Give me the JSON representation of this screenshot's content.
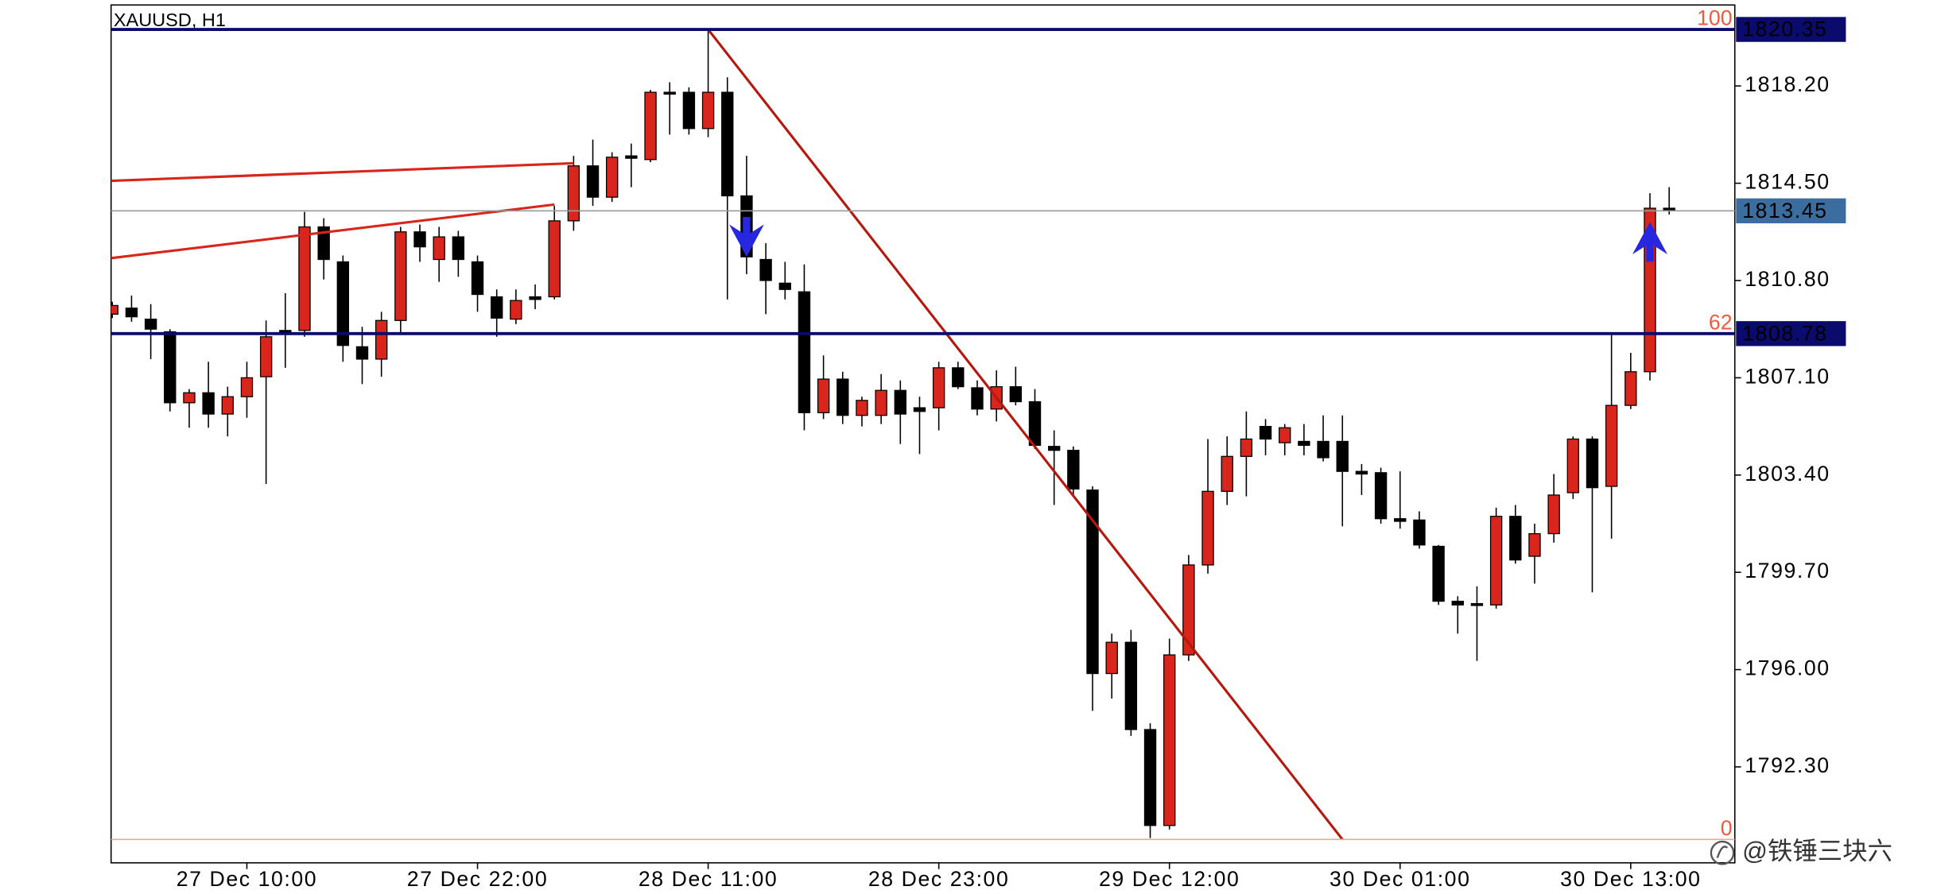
{
  "chart_data": {
    "type": "candlestick",
    "title": "XAUUSD, H1",
    "categories": [
      null,
      null,
      null,
      null,
      null,
      null,
      null,
      "27 Dec 10:00",
      null,
      null,
      null,
      null,
      null,
      null,
      null,
      null,
      null,
      null,
      null,
      "27 Dec 22:00",
      null,
      null,
      null,
      null,
      null,
      null,
      null,
      null,
      null,
      null,
      null,
      "28 Dec 11:00",
      null,
      null,
      null,
      null,
      null,
      null,
      null,
      null,
      null,
      null,
      null,
      "28 Dec 23:00",
      null,
      null,
      null,
      null,
      null,
      null,
      null,
      null,
      null,
      null,
      null,
      "29 Dec 12:00",
      null,
      null,
      null,
      null,
      null,
      null,
      null,
      null,
      null,
      null,
      null,
      "30 Dec 01:00",
      null,
      null,
      null,
      null,
      null,
      null,
      null,
      null,
      null,
      null,
      null,
      "30 Dec 13:00",
      null,
      null
    ],
    "open": [
      1809.52,
      1809.75,
      1809.33,
      1808.85,
      1806.15,
      1806.53,
      1805.72,
      1806.38,
      1807.14,
      1808.9,
      1808.9,
      1812.84,
      1811.51,
      1808.28,
      1807.81,
      1809.28,
      1812.65,
      1811.6,
      1812.46,
      1811.51,
      1810.18,
      1809.33,
      1810.18,
      1810.18,
      1813.07,
      1815.16,
      1813.97,
      1815.54,
      1815.4,
      1817.96,
      1817.96,
      1816.58,
      1817.96,
      1814.02,
      1811.6,
      1810.7,
      1810.37,
      1805.77,
      1807.05,
      1805.67,
      1805.67,
      1806.62,
      1805.96,
      1805.96,
      1807.48,
      1806.72,
      1805.91,
      1806.76,
      1806.19,
      1804.49,
      1804.34,
      1802.83,
      1795.85,
      1797.04,
      1793.72,
      1790.07,
      1796.56,
      1799.98,
      1802.78,
      1804.11,
      1805.25,
      1804.63,
      1804.68,
      1804.68,
      1804.68,
      1803.54,
      1803.49,
      1801.74,
      1801.69,
      1800.69,
      1798.6,
      1798.51,
      1798.46,
      1801.83,
      1800.31,
      1801.17,
      1802.73,
      1804.77,
      1802.97,
      1806.05,
      1807.33,
      1813.55
    ],
    "high": [
      1809.99,
      1810.23,
      1809.9,
      1808.95,
      1806.67,
      1807.71,
      1806.76,
      1807.71,
      1809.28,
      1810.32,
      1813.41,
      1813.17,
      1811.75,
      1809.04,
      1809.61,
      1812.84,
      1812.93,
      1812.84,
      1812.69,
      1811.75,
      1810.46,
      1810.46,
      1810.65,
      1813.64,
      1815.54,
      1816.16,
      1815.68,
      1816.01,
      1818.05,
      1818.34,
      1818.15,
      1820.35,
      1818.53,
      1815.54,
      1812.22,
      1811.51,
      1811.41,
      1807.95,
      1807.33,
      1806.38,
      1807.24,
      1807.0,
      1806.38,
      1807.71,
      1807.71,
      1807.0,
      1807.38,
      1807.52,
      1806.67,
      1805.1,
      1804.49,
      1802.97,
      1797.37,
      1797.51,
      1793.96,
      1797.18,
      1800.36,
      1804.77,
      1804.87,
      1805.82,
      1805.53,
      1805.34,
      1805.34,
      1805.67,
      1805.67,
      1803.82,
      1803.68,
      1803.54,
      1802.02,
      1800.74,
      1798.79,
      1799.17,
      1802.16,
      1802.26,
      1801.55,
      1803.44,
      1804.87,
      1804.87,
      1808.76,
      1808.05,
      1814.12,
      1814.35
    ],
    "low": [
      1809.37,
      1809.23,
      1807.81,
      1805.82,
      1805.2,
      1805.2,
      1804.87,
      1805.58,
      1803.06,
      1807.48,
      1808.66,
      1810.84,
      1807.71,
      1806.86,
      1807.14,
      1808.76,
      1811.51,
      1810.75,
      1810.94,
      1809.61,
      1808.66,
      1809.14,
      1809.71,
      1810.08,
      1812.69,
      1813.64,
      1813.79,
      1814.35,
      1815.3,
      1816.35,
      1816.35,
      1816.25,
      1810.08,
      1811.04,
      1809.52,
      1810.08,
      1805.1,
      1805.53,
      1805.34,
      1805.25,
      1805.34,
      1804.58,
      1804.2,
      1805.1,
      1806.67,
      1805.67,
      1805.44,
      1806.05,
      1804.39,
      1802.26,
      1802.59,
      1794.43,
      1794.9,
      1793.48,
      1789.59,
      1789.92,
      1796.33,
      1799.65,
      1802.26,
      1802.59,
      1804.15,
      1804.15,
      1804.15,
      1803.92,
      1801.45,
      1802.64,
      1801.55,
      1801.36,
      1800.6,
      1798.46,
      1797.37,
      1796.33,
      1798.32,
      1800.03,
      1799.27,
      1800.83,
      1802.49,
      1798.94,
      1800.98,
      1805.91,
      1807.0,
      1813.31
    ],
    "close": [
      1809.85,
      1809.42,
      1808.95,
      1806.15,
      1806.53,
      1805.72,
      1806.38,
      1807.1,
      1808.66,
      1808.8,
      1812.84,
      1811.6,
      1808.33,
      1807.81,
      1809.28,
      1812.65,
      1812.08,
      1812.46,
      1811.6,
      1810.27,
      1809.37,
      1810.04,
      1810.08,
      1813.07,
      1815.16,
      1813.97,
      1815.49,
      1815.45,
      1817.96,
      1817.91,
      1816.58,
      1817.96,
      1814.02,
      1811.7,
      1810.8,
      1810.46,
      1805.77,
      1807.05,
      1805.67,
      1806.24,
      1806.62,
      1805.72,
      1805.82,
      1807.48,
      1806.76,
      1805.91,
      1806.76,
      1806.19,
      1804.53,
      1804.34,
      1802.87,
      1795.85,
      1797.04,
      1793.72,
      1790.07,
      1796.56,
      1799.98,
      1802.78,
      1804.11,
      1804.77,
      1804.77,
      1805.2,
      1804.53,
      1804.06,
      1803.54,
      1803.44,
      1801.74,
      1801.64,
      1800.74,
      1798.6,
      1798.46,
      1798.46,
      1801.83,
      1800.17,
      1801.17,
      1802.64,
      1804.77,
      1802.92,
      1806.05,
      1807.33,
      1813.55,
      1813.45
    ],
    "up_color": "#d8261c",
    "down_color": "#000000",
    "ylim": [
      1788.65,
      1821.28
    ],
    "yticks": [
      {
        "value": 1818.2,
        "label": "1818.20"
      },
      {
        "value": 1814.5,
        "label": "1814.50"
      },
      {
        "value": 1810.8,
        "label": "1810.80"
      },
      {
        "value": 1807.1,
        "label": "1807.10"
      },
      {
        "value": 1803.4,
        "label": "1803.40"
      },
      {
        "value": 1799.7,
        "label": "1799.70"
      },
      {
        "value": 1796,
        "label": "1796.00"
      },
      {
        "value": 1792.3,
        "label": "1792.30"
      }
    ],
    "levels": [
      {
        "value": 1820.35,
        "fib": "100",
        "color": "#0b0b6e"
      },
      {
        "value": 1808.78,
        "fib": "62",
        "color": "#0b0b6e"
      },
      {
        "value": 1789.54,
        "fib": "0",
        "color": "#f2a497"
      }
    ],
    "fib_label_color": "#f05a3c",
    "current_price": {
      "value": 1813.45,
      "color": "#3b6e9f"
    },
    "trendlines": [
      {
        "x": [
          0,
          24
        ],
        "y": [
          1814.59,
          1815.26
        ],
        "color": "#d8261c"
      },
      {
        "x": [
          0,
          23
        ],
        "y": [
          1811.65,
          1813.69
        ],
        "color": "#d8261c"
      },
      {
        "x": [
          31,
          64
        ],
        "y": [
          1820.35,
          1789.54
        ],
        "color": "#b5180e"
      }
    ],
    "arrows": [
      {
        "x": 33,
        "y": 1811.7,
        "direction": "down"
      },
      {
        "x": 80,
        "y": 1813.03,
        "direction": "up"
      }
    ],
    "arrow_color": "#2727e0",
    "watermark": "@铁锤三块六"
  }
}
